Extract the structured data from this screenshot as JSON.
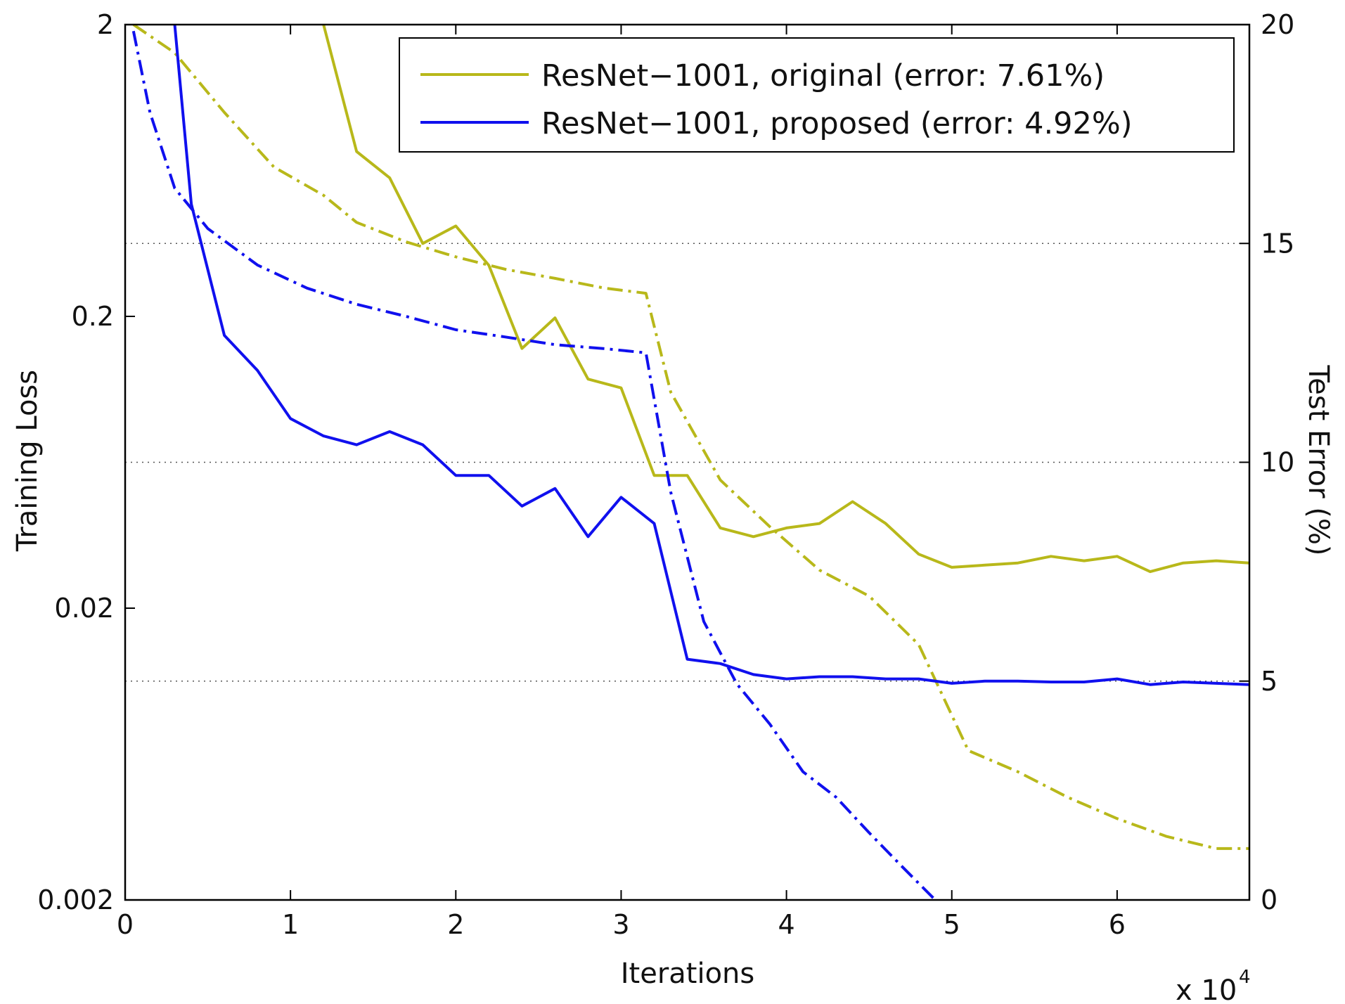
{
  "chart_data": {
    "type": "line",
    "xlabel": "Iterations",
    "x_multiplier": "x 10",
    "x_multiplier_exp": "4",
    "ylabel_left": "Training Loss",
    "ylabel_right": "Test Error (%)",
    "x_range": [
      0,
      6.8
    ],
    "y_left_range": [
      0.002,
      2
    ],
    "y_left_scale": "log",
    "y_right_range": [
      0,
      20
    ],
    "x_ticks": [
      "0",
      "1",
      "2",
      "3",
      "4",
      "5",
      "6"
    ],
    "y_left_ticks": [
      "0.002",
      "0.02",
      "0.2",
      "2"
    ],
    "y_right_ticks": [
      "0",
      "5",
      "10",
      "15",
      "20"
    ],
    "grid": "dotted horizontal at right-axis ticks 5, 10, 15",
    "legend_position": "top-right",
    "colors": {
      "original": "#b8b81a",
      "proposed": "#1010ee"
    },
    "series": [
      {
        "name": "ResNet−1001, original (error: 7.61%)",
        "color": "#b8b81a",
        "test_error": {
          "x": [
            1.2,
            1.4,
            1.6,
            1.8,
            2.0,
            2.2,
            2.4,
            2.6,
            2.8,
            3.0,
            3.2,
            3.4,
            3.6,
            3.8,
            4.0,
            4.2,
            4.4,
            4.6,
            4.8,
            5.0,
            5.2,
            5.4,
            5.6,
            5.8,
            6.0,
            6.2,
            6.4,
            6.6,
            6.8
          ],
          "y": [
            20.0,
            17.1,
            16.5,
            15.0,
            15.4,
            14.5,
            12.6,
            13.3,
            11.9,
            11.7,
            9.7,
            9.7,
            8.5,
            8.3,
            8.5,
            8.6,
            9.1,
            8.6,
            7.9,
            7.6,
            7.65,
            7.7,
            7.85,
            7.75,
            7.85,
            7.5,
            7.7,
            7.75,
            7.7
          ]
        },
        "training_loss": {
          "x": [
            0.05,
            0.3,
            0.6,
            0.9,
            1.2,
            1.4,
            1.7,
            2.0,
            2.3,
            2.6,
            2.9,
            3.15,
            3.3,
            3.6,
            3.9,
            4.2,
            4.5,
            4.8,
            5.1,
            5.4,
            5.7,
            6.0,
            6.3,
            6.6,
            6.8
          ],
          "y": [
            2.0,
            1.6,
            1.0,
            0.65,
            0.52,
            0.42,
            0.36,
            0.32,
            0.29,
            0.27,
            0.25,
            0.24,
            0.11,
            0.055,
            0.038,
            0.027,
            0.022,
            0.015,
            0.0065,
            0.0055,
            0.0045,
            0.0038,
            0.0033,
            0.003,
            0.003
          ]
        }
      },
      {
        "name": "ResNet−1001, proposed (error: 4.92%)",
        "color": "#1010ee",
        "test_error": {
          "x": [
            0.3,
            0.4,
            0.6,
            0.8,
            1.0,
            1.2,
            1.4,
            1.6,
            1.8,
            2.0,
            2.2,
            2.4,
            2.6,
            2.8,
            3.0,
            3.2,
            3.4,
            3.6,
            3.8,
            4.0,
            4.2,
            4.4,
            4.6,
            4.8,
            5.0,
            5.2,
            5.4,
            5.6,
            5.8,
            6.0,
            6.2,
            6.4,
            6.6,
            6.8
          ],
          "y": [
            20.0,
            15.9,
            12.9,
            12.1,
            11.0,
            10.6,
            10.4,
            10.7,
            10.4,
            9.7,
            9.7,
            9.0,
            9.4,
            8.3,
            9.2,
            8.6,
            5.5,
            5.4,
            5.15,
            5.05,
            5.1,
            5.1,
            5.05,
            5.05,
            4.95,
            5.0,
            5.0,
            4.98,
            4.98,
            5.05,
            4.92,
            4.98,
            4.95,
            4.92
          ]
        },
        "training_loss": {
          "x": [
            0.05,
            0.15,
            0.3,
            0.5,
            0.8,
            1.1,
            1.4,
            1.7,
            2.0,
            2.3,
            2.6,
            2.9,
            3.15,
            3.3,
            3.5,
            3.7,
            3.9,
            4.1,
            4.3,
            4.5,
            4.7,
            4.9
          ],
          "y": [
            1.9,
            1.0,
            0.55,
            0.4,
            0.3,
            0.25,
            0.22,
            0.2,
            0.18,
            0.17,
            0.16,
            0.155,
            0.15,
            0.05,
            0.018,
            0.011,
            0.008,
            0.0055,
            0.0045,
            0.0034,
            0.0026,
            0.002
          ]
        }
      }
    ]
  }
}
